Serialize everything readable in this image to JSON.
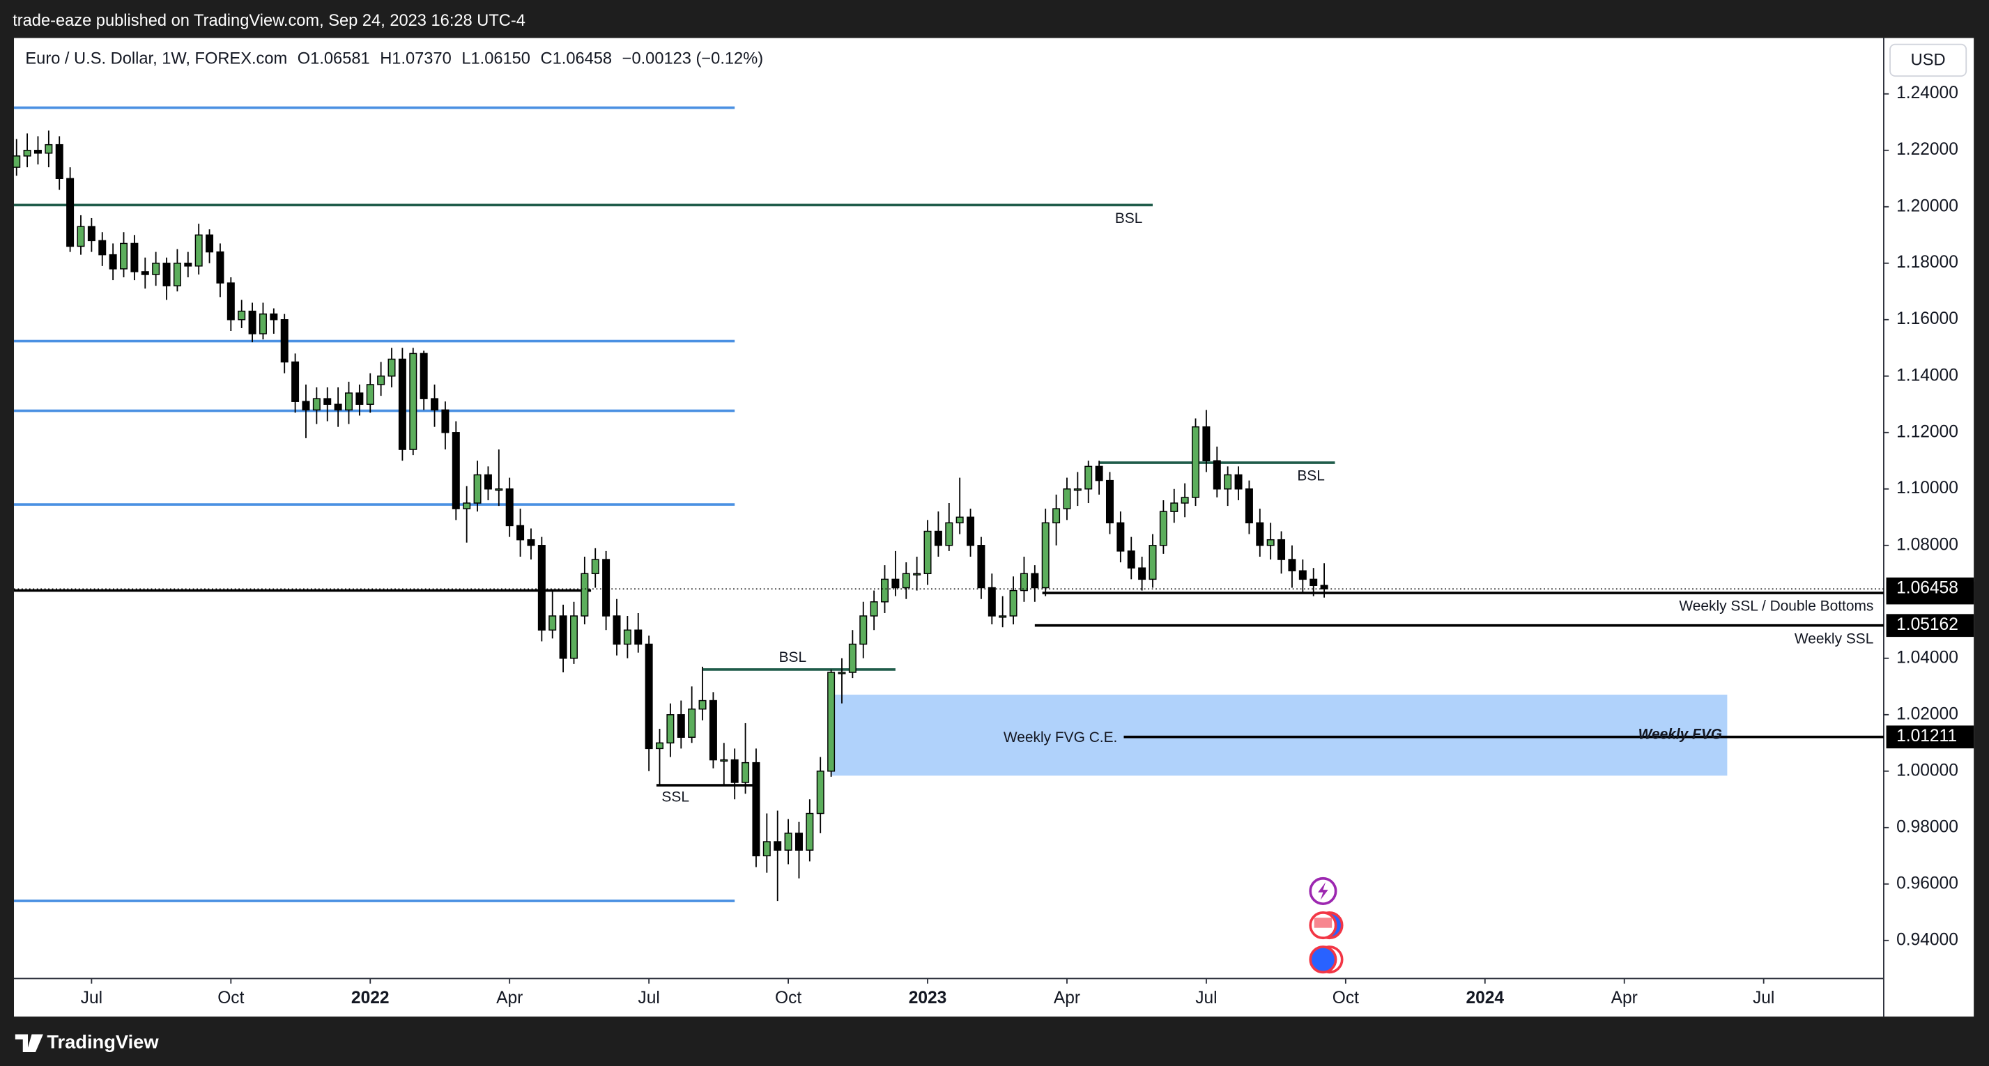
{
  "publisher": "trade-eaze published on TradingView.com, Sep 24, 2023 16:28 UTC-4",
  "brand": "TradingView",
  "chart_data": {
    "type": "candlestick",
    "legend": [
      "Euro / U.S. Dollar, 1W, FOREX.com",
      "O1.06581",
      "H1.07370",
      "L1.06150",
      "C1.06458",
      "−0.00123 (−0.12%)"
    ],
    "currency": "USD",
    "up_color": "#5cae5c",
    "down_color": "#000000",
    "grid": false,
    "xlim": [
      -0.24,
      174.2
    ],
    "xticks": [
      {
        "value": 7,
        "label": "Jul"
      },
      {
        "value": 20,
        "label": "Oct"
      },
      {
        "value": 33,
        "label": "2022"
      },
      {
        "value": 46,
        "label": "Apr"
      },
      {
        "value": 59,
        "label": "Jul"
      },
      {
        "value": 72,
        "label": "Oct"
      },
      {
        "value": 85,
        "label": "2023"
      },
      {
        "value": 98,
        "label": "Apr"
      },
      {
        "value": 111,
        "label": "Jul"
      },
      {
        "value": 124,
        "label": "Oct"
      },
      {
        "value": 137,
        "label": "2024"
      },
      {
        "value": 150,
        "label": "Apr"
      },
      {
        "value": 163,
        "label": "Jul"
      }
    ],
    "ylim": [
      0.9265,
      1.2598
    ],
    "yticks": [
      {
        "value": 1.24,
        "label": "1.24000"
      },
      {
        "value": 1.22,
        "label": "1.22000"
      },
      {
        "value": 1.2,
        "label": "1.20000"
      },
      {
        "value": 1.18,
        "label": "1.18000"
      },
      {
        "value": 1.16,
        "label": "1.16000"
      },
      {
        "value": 1.14,
        "label": "1.14000"
      },
      {
        "value": 1.12,
        "label": "1.12000"
      },
      {
        "value": 1.1,
        "label": "1.10000"
      },
      {
        "value": 1.08,
        "label": "1.08000"
      },
      {
        "value": 1.04,
        "label": "1.04000"
      },
      {
        "value": 1.02,
        "label": "1.02000"
      },
      {
        "value": 1.0,
        "label": "1.00000"
      },
      {
        "value": 0.98,
        "label": "0.98000"
      },
      {
        "value": 0.96,
        "label": "0.96000"
      },
      {
        "value": 0.94,
        "label": "0.94000"
      }
    ],
    "ohlc": [
      [
        1.214,
        1.224,
        1.211,
        1.218
      ],
      [
        1.218,
        1.226,
        1.214,
        1.22
      ],
      [
        1.22,
        1.225,
        1.215,
        1.219
      ],
      [
        1.219,
        1.227,
        1.214,
        1.222
      ],
      [
        1.222,
        1.225,
        1.206,
        1.21
      ],
      [
        1.21,
        1.214,
        1.184,
        1.186
      ],
      [
        1.186,
        1.197,
        1.183,
        1.193
      ],
      [
        1.193,
        1.196,
        1.184,
        1.188
      ],
      [
        1.188,
        1.191,
        1.179,
        1.183
      ],
      [
        1.183,
        1.187,
        1.174,
        1.178
      ],
      [
        1.178,
        1.191,
        1.175,
        1.187
      ],
      [
        1.187,
        1.19,
        1.174,
        1.177
      ],
      [
        1.177,
        1.182,
        1.171,
        1.176
      ],
      [
        1.176,
        1.184,
        1.172,
        1.18
      ],
      [
        1.18,
        1.182,
        1.167,
        1.172
      ],
      [
        1.172,
        1.185,
        1.17,
        1.18
      ],
      [
        1.18,
        1.184,
        1.175,
        1.179
      ],
      [
        1.179,
        1.194,
        1.176,
        1.19
      ],
      [
        1.19,
        1.192,
        1.18,
        1.184
      ],
      [
        1.184,
        1.187,
        1.168,
        1.173
      ],
      [
        1.173,
        1.175,
        1.156,
        1.16
      ],
      [
        1.16,
        1.167,
        1.157,
        1.163
      ],
      [
        1.163,
        1.166,
        1.152,
        1.155
      ],
      [
        1.155,
        1.166,
        1.153,
        1.162
      ],
      [
        1.162,
        1.164,
        1.155,
        1.16
      ],
      [
        1.16,
        1.162,
        1.141,
        1.145
      ],
      [
        1.145,
        1.148,
        1.127,
        1.131
      ],
      [
        1.131,
        1.137,
        1.118,
        1.128
      ],
      [
        1.128,
        1.136,
        1.123,
        1.132
      ],
      [
        1.132,
        1.136,
        1.124,
        1.13
      ],
      [
        1.13,
        1.136,
        1.122,
        1.128
      ],
      [
        1.128,
        1.138,
        1.123,
        1.134
      ],
      [
        1.134,
        1.137,
        1.126,
        1.13
      ],
      [
        1.13,
        1.141,
        1.127,
        1.137
      ],
      [
        1.137,
        1.145,
        1.133,
        1.14
      ],
      [
        1.14,
        1.15,
        1.136,
        1.146
      ],
      [
        1.146,
        1.15,
        1.11,
        1.114
      ],
      [
        1.114,
        1.15,
        1.112,
        1.148
      ],
      [
        1.148,
        1.149,
        1.128,
        1.132
      ],
      [
        1.132,
        1.137,
        1.122,
        1.128
      ],
      [
        1.128,
        1.131,
        1.114,
        1.12
      ],
      [
        1.12,
        1.124,
        1.089,
        1.093
      ],
      [
        1.093,
        1.101,
        1.081,
        1.095
      ],
      [
        1.095,
        1.11,
        1.092,
        1.105
      ],
      [
        1.105,
        1.108,
        1.096,
        1.1
      ],
      [
        1.1,
        1.114,
        1.094,
        1.1
      ],
      [
        1.1,
        1.104,
        1.083,
        1.087
      ],
      [
        1.087,
        1.093,
        1.076,
        1.082
      ],
      [
        1.082,
        1.086,
        1.075,
        1.08
      ],
      [
        1.08,
        1.083,
        1.046,
        1.05
      ],
      [
        1.05,
        1.064,
        1.047,
        1.055
      ],
      [
        1.055,
        1.059,
        1.035,
        1.04
      ],
      [
        1.04,
        1.06,
        1.038,
        1.055
      ],
      [
        1.055,
        1.076,
        1.052,
        1.07
      ],
      [
        1.07,
        1.079,
        1.065,
        1.075
      ],
      [
        1.075,
        1.078,
        1.05,
        1.055
      ],
      [
        1.055,
        1.061,
        1.041,
        1.045
      ],
      [
        1.045,
        1.055,
        1.04,
        1.05
      ],
      [
        1.05,
        1.056,
        1.042,
        1.045
      ],
      [
        1.045,
        1.048,
        1.0,
        1.008
      ],
      [
        1.008,
        1.015,
        0.995,
        1.01
      ],
      [
        1.01,
        1.024,
        1.005,
        1.02
      ],
      [
        1.02,
        1.025,
        1.008,
        1.012
      ],
      [
        1.012,
        1.03,
        1.01,
        1.022
      ],
      [
        1.022,
        1.037,
        1.018,
        1.025
      ],
      [
        1.025,
        1.028,
        1.001,
        1.004
      ],
      [
        1.004,
        1.01,
        0.995,
        1.004
      ],
      [
        1.004,
        1.008,
        0.99,
        0.996
      ],
      [
        0.996,
        1.017,
        0.992,
        1.003
      ],
      [
        1.003,
        1.008,
        0.966,
        0.97
      ],
      [
        0.97,
        0.985,
        0.964,
        0.975
      ],
      [
        0.975,
        0.986,
        0.954,
        0.972
      ],
      [
        0.972,
        0.983,
        0.967,
        0.978
      ],
      [
        0.978,
        0.982,
        0.962,
        0.972
      ],
      [
        0.972,
        0.99,
        0.968,
        0.985
      ],
      [
        0.985,
        1.005,
        0.978,
        1.0
      ],
      [
        1.0,
        1.036,
        0.998,
        1.035
      ],
      [
        1.035,
        1.04,
        1.024,
        1.035
      ],
      [
        1.035,
        1.05,
        1.033,
        1.045
      ],
      [
        1.045,
        1.06,
        1.04,
        1.055
      ],
      [
        1.055,
        1.064,
        1.05,
        1.06
      ],
      [
        1.06,
        1.073,
        1.056,
        1.068
      ],
      [
        1.068,
        1.078,
        1.062,
        1.065
      ],
      [
        1.065,
        1.074,
        1.061,
        1.07
      ],
      [
        1.07,
        1.076,
        1.064,
        1.07
      ],
      [
        1.07,
        1.089,
        1.066,
        1.085
      ],
      [
        1.085,
        1.092,
        1.076,
        1.08
      ],
      [
        1.08,
        1.095,
        1.078,
        1.088
      ],
      [
        1.088,
        1.104,
        1.084,
        1.09
      ],
      [
        1.09,
        1.093,
        1.076,
        1.08
      ],
      [
        1.08,
        1.083,
        1.061,
        1.065
      ],
      [
        1.065,
        1.07,
        1.052,
        1.055
      ],
      [
        1.055,
        1.062,
        1.051,
        1.055
      ],
      [
        1.055,
        1.069,
        1.052,
        1.064
      ],
      [
        1.064,
        1.076,
        1.06,
        1.07
      ],
      [
        1.07,
        1.073,
        1.06,
        1.065
      ],
      [
        1.065,
        1.093,
        1.062,
        1.088
      ],
      [
        1.088,
        1.098,
        1.08,
        1.093
      ],
      [
        1.093,
        1.104,
        1.089,
        1.1
      ],
      [
        1.1,
        1.106,
        1.094,
        1.1
      ],
      [
        1.1,
        1.11,
        1.095,
        1.108
      ],
      [
        1.108,
        1.11,
        1.098,
        1.103
      ],
      [
        1.103,
        1.106,
        1.084,
        1.088
      ],
      [
        1.088,
        1.092,
        1.074,
        1.078
      ],
      [
        1.078,
        1.083,
        1.068,
        1.072
      ],
      [
        1.072,
        1.076,
        1.064,
        1.068
      ],
      [
        1.068,
        1.084,
        1.065,
        1.08
      ],
      [
        1.08,
        1.096,
        1.077,
        1.092
      ],
      [
        1.092,
        1.1,
        1.088,
        1.095
      ],
      [
        1.095,
        1.102,
        1.09,
        1.097
      ],
      [
        1.097,
        1.125,
        1.094,
        1.122
      ],
      [
        1.122,
        1.128,
        1.106,
        1.11
      ],
      [
        1.11,
        1.115,
        1.097,
        1.1
      ],
      [
        1.1,
        1.108,
        1.094,
        1.105
      ],
      [
        1.105,
        1.108,
        1.096,
        1.1
      ],
      [
        1.1,
        1.103,
        1.084,
        1.088
      ],
      [
        1.088,
        1.093,
        1.076,
        1.08
      ],
      [
        1.08,
        1.088,
        1.075,
        1.082
      ],
      [
        1.082,
        1.085,
        1.07,
        1.075
      ],
      [
        1.075,
        1.08,
        1.065,
        1.071
      ],
      [
        1.071,
        1.075,
        1.063,
        1.068
      ],
      [
        1.068,
        1.072,
        1.062,
        1.06581
      ],
      [
        1.06581,
        1.0737,
        1.0615,
        1.06458
      ]
    ],
    "zones": [
      {
        "label": "Weekly FVG",
        "top": 1.0271,
        "bottom": 0.9984,
        "from": 76,
        "to": 159.6,
        "color": "#b0d2fb"
      }
    ],
    "levels": [
      {
        "price": 1.2351,
        "from": -0.24,
        "to": 67,
        "color": "#4a90e2"
      },
      {
        "price": 1.1524,
        "from": -0.24,
        "to": 67,
        "color": "#4a90e2"
      },
      {
        "price": 1.1277,
        "from": -0.24,
        "to": 67,
        "color": "#4a90e2"
      },
      {
        "price": 1.0945,
        "from": -0.24,
        "to": 67,
        "color": "#4a90e2"
      },
      {
        "price": 0.954,
        "from": -0.24,
        "to": 67,
        "color": "#4a90e2"
      },
      {
        "price": 1.2006,
        "from": -0.24,
        "to": 106,
        "color": "#1f5c4a",
        "label": "BSL"
      },
      {
        "price": 1.1093,
        "from": 101,
        "to": 123,
        "color": "#1f5c4a",
        "label": "BSL"
      },
      {
        "price": 1.036,
        "from": 64,
        "to": 82,
        "color": "#1f5c4a",
        "label": "BSL"
      },
      {
        "price": 0.995,
        "from": 59.7,
        "to": 69,
        "color": "#000000",
        "label": "SSL"
      },
      {
        "price": 1.064,
        "from": -0.24,
        "to": 53.6,
        "color": "#000000"
      },
      {
        "price": 1.06314,
        "from": 95.7,
        "to": 174.2,
        "color": "#000000",
        "label": "Weekly SSL / Double Bottoms"
      },
      {
        "price": 1.05162,
        "from": 95,
        "to": 174.2,
        "color": "#000000",
        "label": "Weekly SSL"
      },
      {
        "price": 1.01211,
        "from": 103.3,
        "to": 174.2,
        "color": "#000000",
        "label": "Weekly FVG C.E."
      }
    ]
  }
}
